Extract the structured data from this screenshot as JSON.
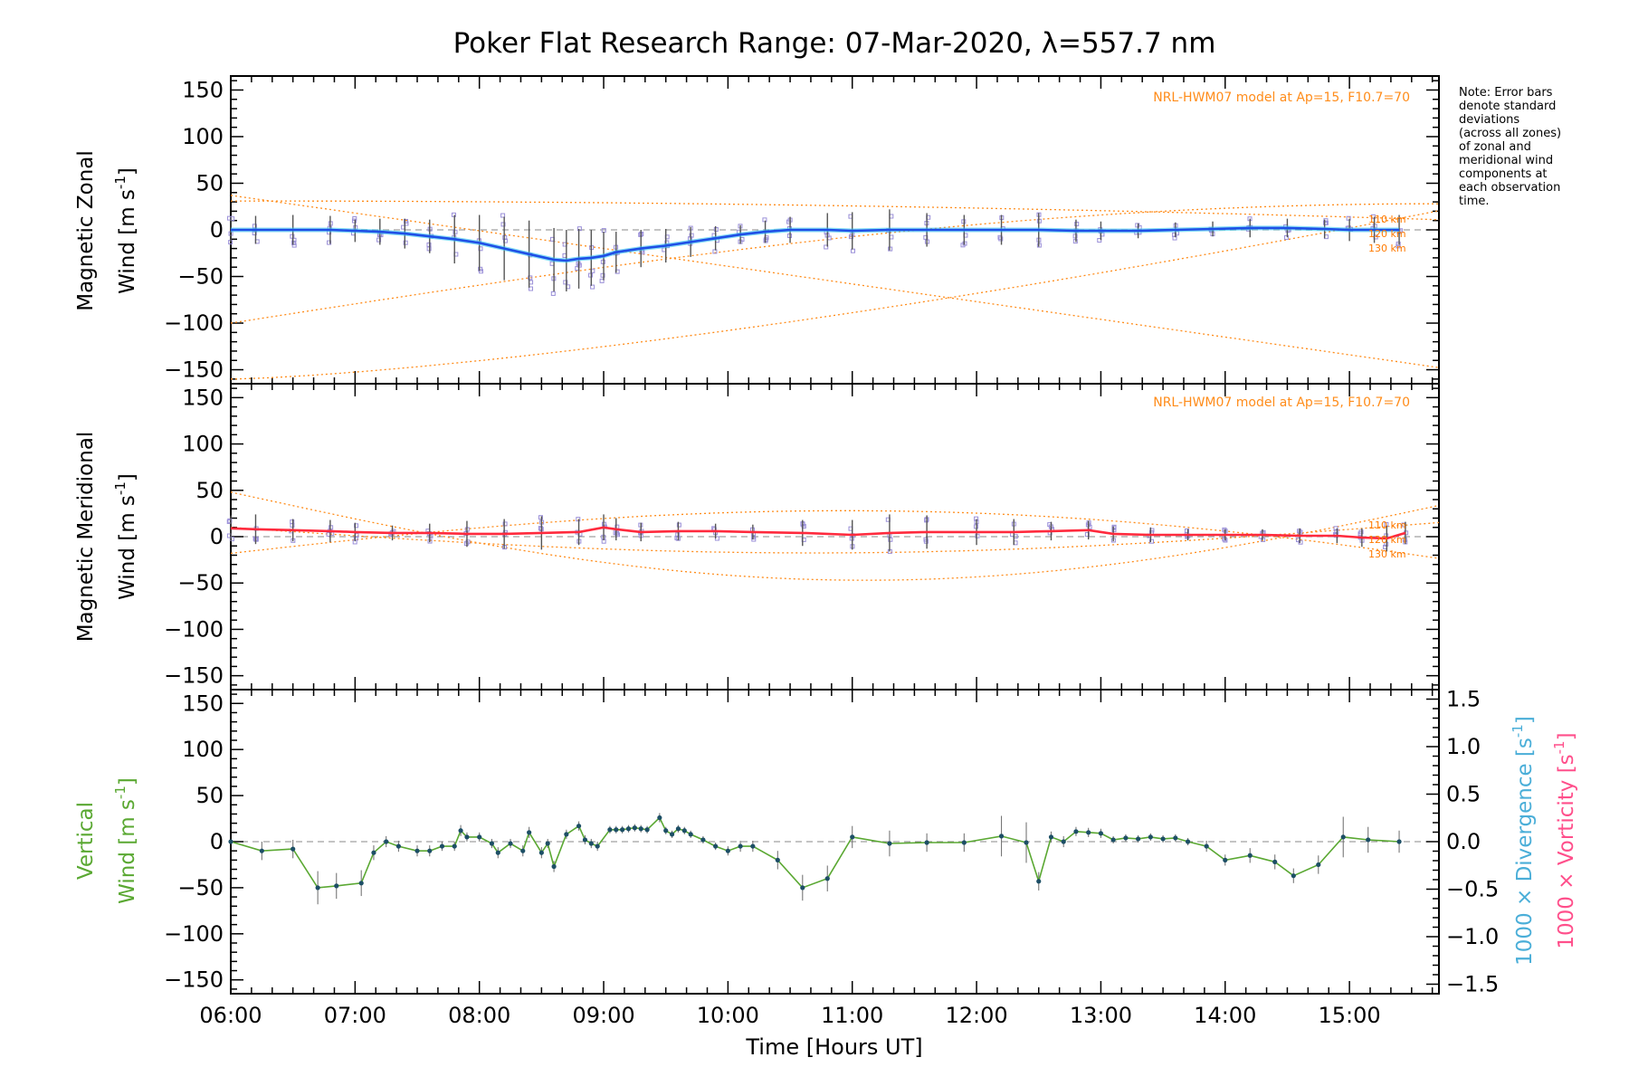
{
  "title": "Poker Flat Research Range: 07-Mar-2020, λ=557.7 nm",
  "note": [
    "Note: Error bars",
    "denote standard",
    "deviations",
    "(across all zones)",
    "of zonal and",
    "meridional wind",
    "components at",
    "each observation",
    "time."
  ],
  "model_label": "NRL-HWM07 model at Ap=15, F10.7=70",
  "altitudes": [
    "110 km",
    "120 km",
    "130 km"
  ],
  "x_axis": {
    "label": "Time [Hours UT]",
    "ticks": [
      "06:00",
      "07:00",
      "08:00",
      "09:00",
      "10:00",
      "11:00",
      "12:00",
      "13:00",
      "14:00",
      "15:00"
    ],
    "tick_values": [
      6,
      7,
      8,
      9,
      10,
      11,
      12,
      13,
      14,
      15
    ],
    "range": [
      6.0,
      15.72
    ]
  },
  "y_ticks": [
    "150",
    "100",
    "50",
    "0",
    "−50",
    "−100",
    "−150"
  ],
  "y_tick_values": [
    150,
    100,
    50,
    0,
    -50,
    -100,
    -150
  ],
  "right_ticks": [
    "1.5",
    "1.0",
    "0.5",
    "0.0",
    "−0.5",
    "−1.0",
    "−1.5"
  ],
  "right_tick_values": [
    1.5,
    1.0,
    0.5,
    0.0,
    -0.5,
    -1.0,
    -1.5
  ],
  "panels": {
    "zonal": {
      "ylabel_line1": "Magnetic Zonal",
      "ylabel_line2": "Wind [m s",
      "unit_exp": "-1",
      "unit_close": "]"
    },
    "meridional": {
      "ylabel_line1": "Magnetic Meridional",
      "ylabel_line2": "Wind [m s",
      "unit_exp": "-1",
      "unit_close": "]"
    },
    "vertical": {
      "ylabel_line1": "Vertical",
      "ylabel_line2": "Wind [m s",
      "unit_exp": "-1",
      "unit_close": "]"
    }
  },
  "right_axis": {
    "divergence_label": "1000 × Divergence [s",
    "divergence_exp": "-1",
    "divergence_close": "]",
    "vorticity_label": "1000 × Vorticity [s",
    "vorticity_exp": "-1",
    "vorticity_close": "]"
  },
  "colors": {
    "zonal_line": "#1f4fe6",
    "zonal_mean": "#39c8f0",
    "meridional_line": "#ff2a3d",
    "vertical_line": "#5aa832",
    "vertical_point": "#1d4f66",
    "model": "#ff8c1a",
    "scatter": "#9a8fd8",
    "error_bar": "#555555",
    "divergence": "#4aaed8",
    "vorticity": "#ff4f8b"
  },
  "chart_data": [
    {
      "type": "line",
      "name": "Magnetic Zonal Wind",
      "ylim": [
        -165,
        165
      ],
      "x": [
        6.0,
        6.2,
        6.5,
        6.8,
        7.0,
        7.2,
        7.4,
        7.6,
        7.8,
        8.0,
        8.2,
        8.4,
        8.6,
        8.7,
        8.8,
        8.9,
        9.0,
        9.1,
        9.3,
        9.5,
        9.7,
        9.9,
        10.1,
        10.3,
        10.5,
        10.8,
        11.0,
        11.3,
        11.6,
        11.9,
        12.2,
        12.5,
        12.8,
        13.0,
        13.3,
        13.6,
        13.9,
        14.2,
        14.5,
        14.8,
        15.0,
        15.2,
        15.4
      ],
      "y": [
        0,
        0,
        0,
        0,
        -1,
        -2,
        -4,
        -7,
        -10,
        -14,
        -20,
        -26,
        -32,
        -33,
        -31,
        -30,
        -28,
        -24,
        -20,
        -17,
        -13,
        -9,
        -5,
        -2,
        0,
        0,
        -1,
        0,
        0,
        0,
        0,
        0,
        -1,
        -1,
        -1,
        0,
        1,
        2,
        2,
        1,
        0,
        0,
        0
      ],
      "error": [
        14,
        15,
        16,
        15,
        12,
        14,
        16,
        18,
        26,
        30,
        34,
        36,
        34,
        33,
        32,
        30,
        26,
        22,
        20,
        18,
        16,
        13,
        10,
        12,
        14,
        18,
        20,
        22,
        18,
        16,
        16,
        18,
        12,
        10,
        8,
        8,
        8,
        10,
        10,
        10,
        12,
        14,
        16
      ]
    },
    {
      "type": "line",
      "name": "Magnetic Meridional Wind",
      "ylim": [
        -165,
        165
      ],
      "x": [
        6.0,
        6.2,
        6.5,
        6.8,
        7.0,
        7.3,
        7.6,
        7.9,
        8.2,
        8.5,
        8.8,
        9.0,
        9.1,
        9.3,
        9.6,
        9.9,
        10.2,
        10.6,
        11.0,
        11.3,
        11.6,
        12.0,
        12.3,
        12.6,
        12.9,
        13.1,
        13.4,
        13.7,
        14.0,
        14.3,
        14.6,
        14.9,
        15.1,
        15.3,
        15.45
      ],
      "y": [
        9,
        8,
        7,
        6,
        5,
        4,
        4,
        3,
        3,
        4,
        5,
        10,
        8,
        5,
        6,
        6,
        5,
        4,
        2,
        4,
        5,
        5,
        5,
        6,
        7,
        3,
        2,
        2,
        2,
        2,
        1,
        1,
        -1,
        -2,
        4
      ],
      "error": [
        14,
        16,
        12,
        12,
        10,
        8,
        10,
        14,
        16,
        18,
        14,
        14,
        12,
        10,
        10,
        8,
        8,
        14,
        16,
        20,
        18,
        14,
        14,
        10,
        10,
        8,
        8,
        6,
        6,
        6,
        8,
        8,
        10,
        14,
        12
      ]
    },
    {
      "type": "line",
      "name": "Vertical Wind",
      "ylim": [
        -165,
        165
      ],
      "x": [
        6.0,
        6.25,
        6.5,
        6.7,
        6.85,
        7.05,
        7.15,
        7.25,
        7.35,
        7.5,
        7.6,
        7.7,
        7.8,
        7.85,
        7.9,
        8.0,
        8.1,
        8.15,
        8.25,
        8.35,
        8.4,
        8.5,
        8.55,
        8.6,
        8.7,
        8.8,
        8.85,
        8.9,
        8.95,
        9.05,
        9.1,
        9.15,
        9.2,
        9.25,
        9.3,
        9.35,
        9.45,
        9.5,
        9.55,
        9.6,
        9.65,
        9.7,
        9.8,
        9.9,
        10.0,
        10.1,
        10.2,
        10.4,
        10.6,
        10.8,
        11.0,
        11.3,
        11.6,
        11.9,
        12.2,
        12.4,
        12.5,
        12.6,
        12.7,
        12.8,
        12.9,
        13.0,
        13.1,
        13.2,
        13.3,
        13.4,
        13.5,
        13.6,
        13.7,
        13.85,
        14.0,
        14.2,
        14.4,
        14.55,
        14.75,
        14.95,
        15.15,
        15.4
      ],
      "y": [
        0,
        -10,
        -8,
        -50,
        -48,
        -45,
        -12,
        0,
        -5,
        -10,
        -10,
        -5,
        -5,
        12,
        5,
        5,
        -2,
        -12,
        -2,
        -10,
        10,
        -12,
        -2,
        -27,
        8,
        17,
        2,
        -2,
        -5,
        13,
        13,
        13,
        14,
        15,
        14,
        13,
        26,
        12,
        8,
        14,
        12,
        8,
        2,
        -5,
        -10,
        -5,
        -5,
        -20,
        -50,
        -40,
        5,
        -2,
        -1,
        -1,
        6,
        -1,
        -43,
        5,
        0,
        11,
        10,
        9,
        2,
        4,
        3,
        5,
        3,
        4,
        0,
        -5,
        -20,
        -15,
        -22,
        -37,
        -25,
        5,
        2,
        0
      ],
      "error": [
        0,
        10,
        10,
        18,
        14,
        14,
        8,
        6,
        6,
        6,
        6,
        5,
        5,
        6,
        5,
        5,
        5,
        6,
        5,
        6,
        6,
        6,
        5,
        6,
        5,
        5,
        5,
        5,
        5,
        4,
        4,
        4,
        4,
        4,
        4,
        4,
        5,
        4,
        4,
        4,
        4,
        4,
        4,
        4,
        5,
        6,
        6,
        10,
        14,
        14,
        12,
        14,
        10,
        10,
        22,
        22,
        10,
        6,
        6,
        5,
        5,
        5,
        4,
        4,
        4,
        4,
        4,
        4,
        4,
        6,
        6,
        8,
        8,
        8,
        10,
        22,
        14,
        12
      ]
    }
  ]
}
